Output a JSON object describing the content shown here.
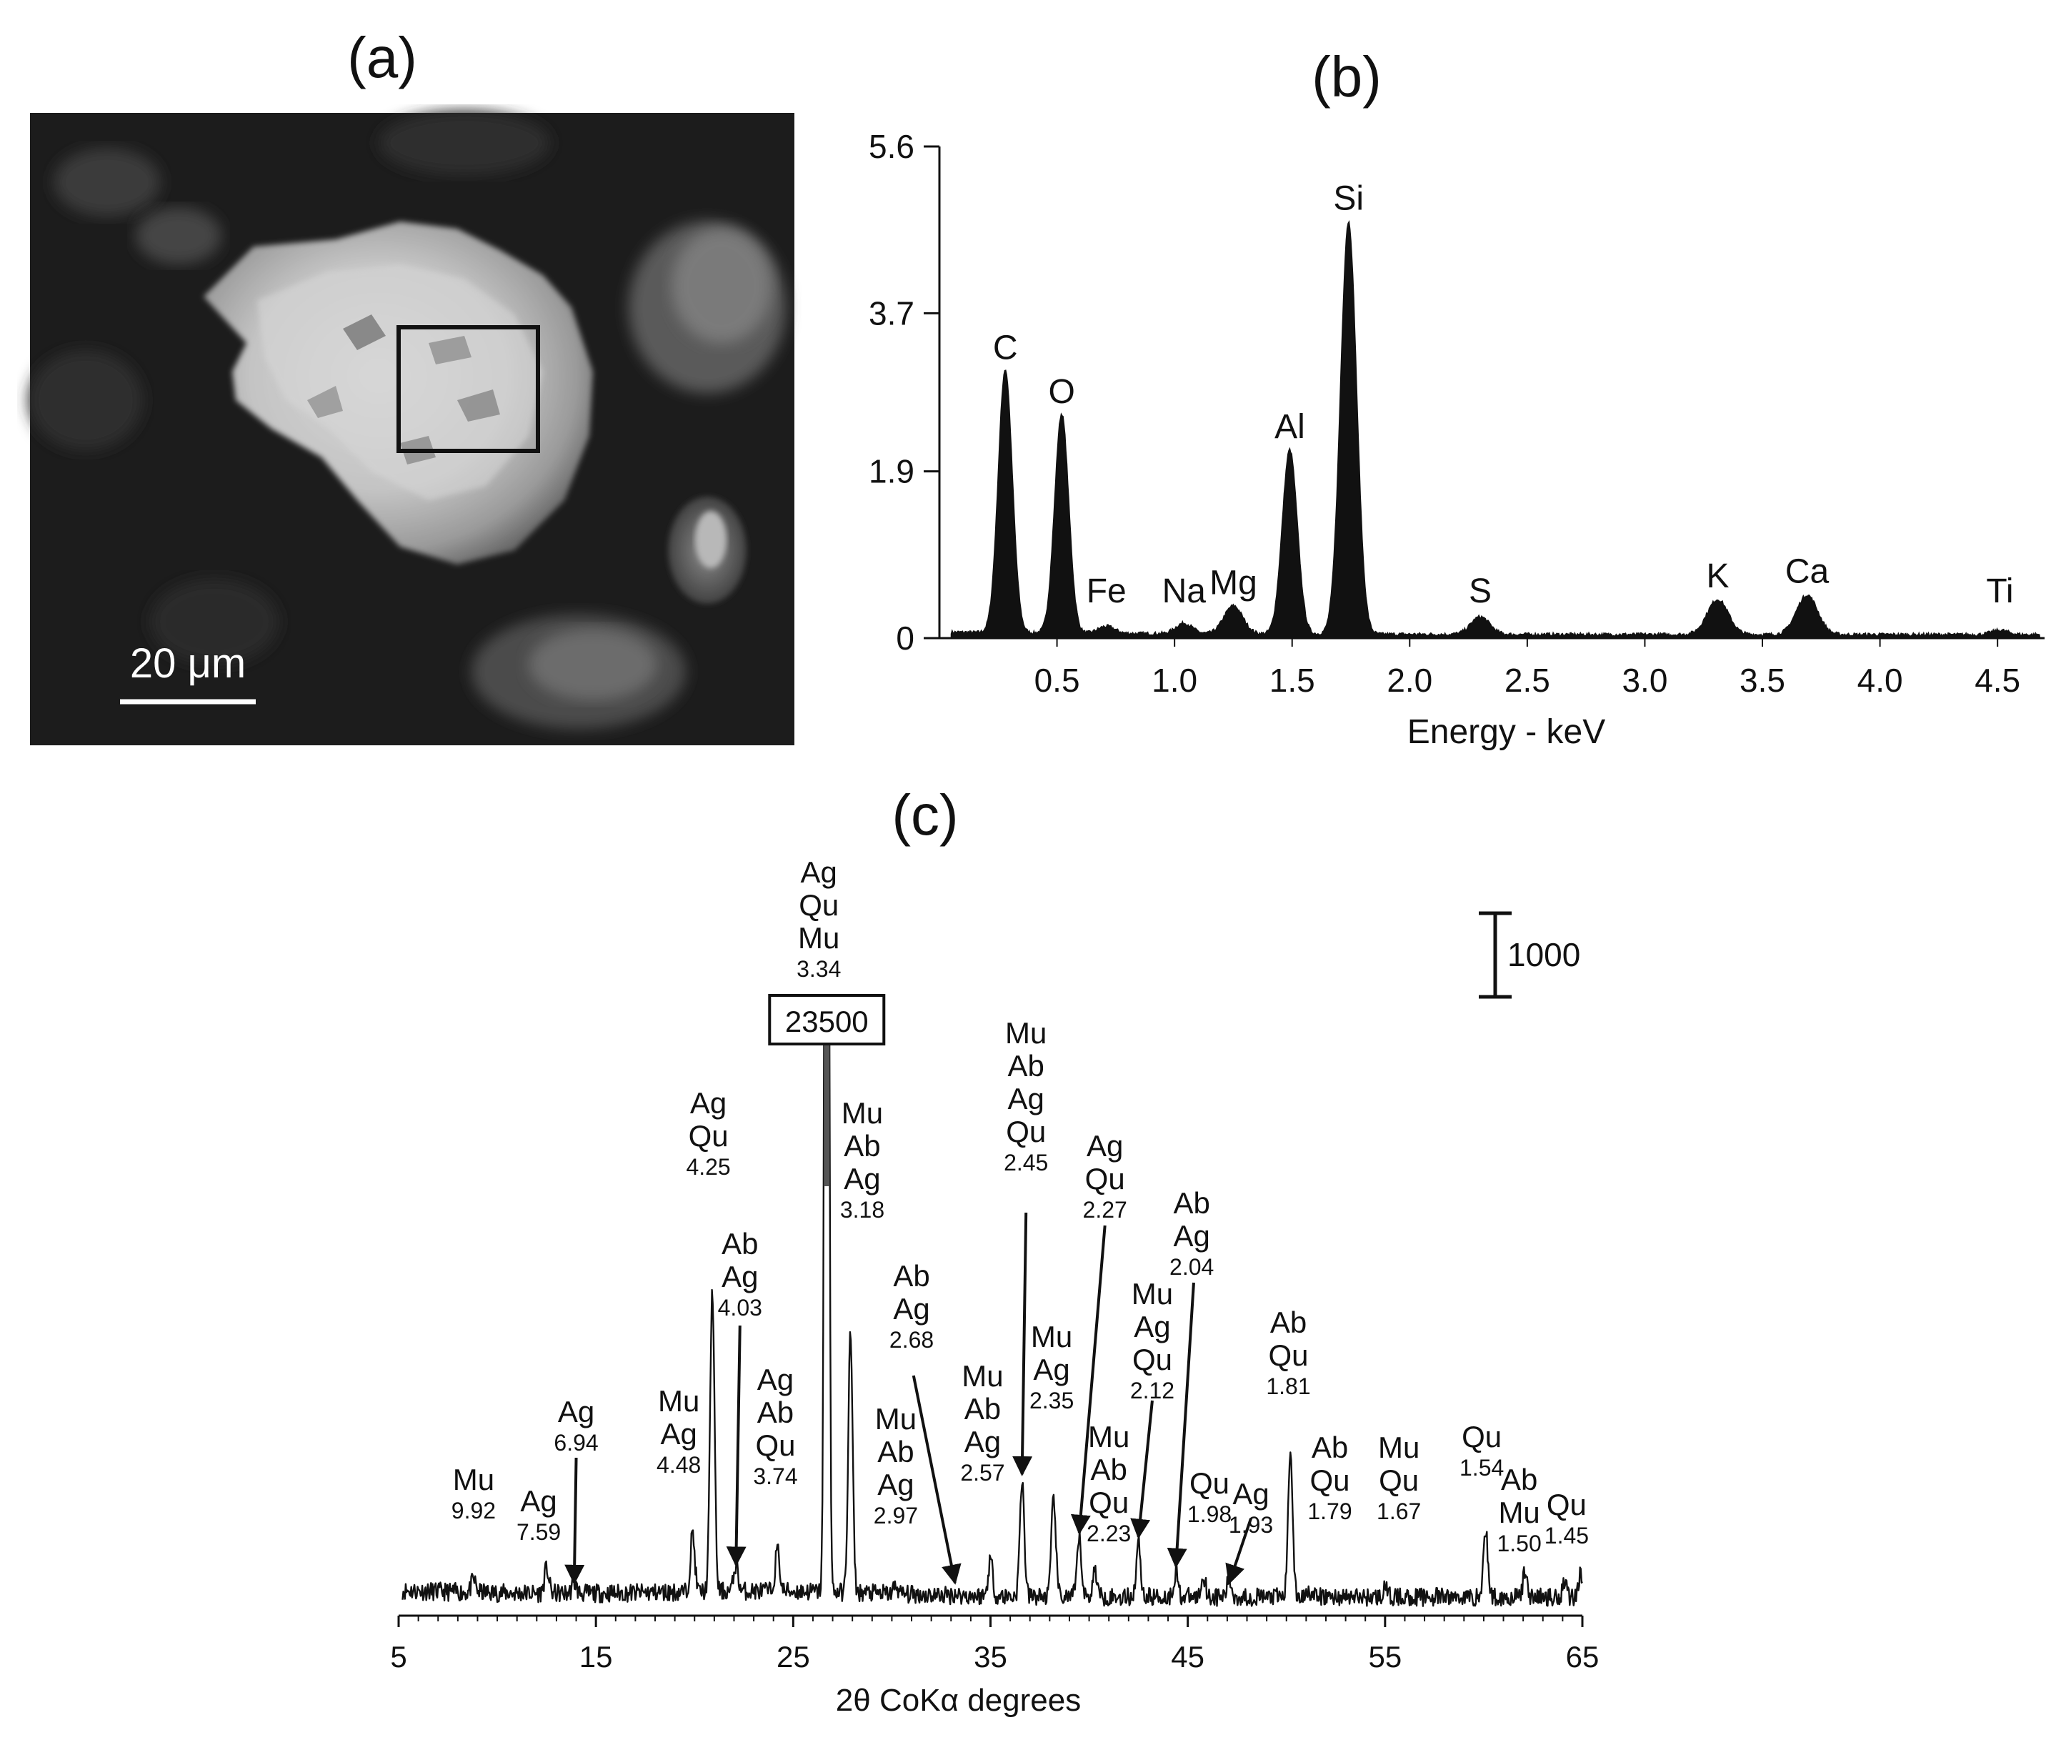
{
  "panels": {
    "a": {
      "letter": "(a)",
      "scale_bar_label": "20 μm"
    },
    "b": {
      "letter": "(b)"
    },
    "c": {
      "letter": "(c)",
      "scale_label": "1000",
      "clipped_peak_value": "23500"
    }
  },
  "colors": {
    "ink": "#111111",
    "background": "#ffffff",
    "sem_background": "#1c1c1c"
  },
  "chart_data": [
    {
      "panel": "b",
      "type": "area",
      "xlabel": "Energy - keV",
      "ylabel": "",
      "xlim": [
        0,
        4.7
      ],
      "ylim": [
        0,
        5.6
      ],
      "x_ticks": [
        0.5,
        1.0,
        1.5,
        2.0,
        2.5,
        3.0,
        3.5,
        4.0,
        4.5
      ],
      "x_tick_labels": [
        "0.5",
        "1.0",
        "1.5",
        "2.0",
        "2.5",
        "3.0",
        "3.5",
        "4.0",
        "4.5"
      ],
      "y_ticks": [
        0,
        1.9,
        3.7,
        5.6
      ],
      "y_tick_labels": [
        "0",
        "1.9",
        "3.7",
        "5.6"
      ],
      "peaks": [
        {
          "label": "C",
          "energy": 0.28,
          "intensity": 3.0
        },
        {
          "label": "O",
          "energy": 0.52,
          "intensity": 2.5
        },
        {
          "label": "Fe",
          "energy": 0.71,
          "intensity": 0.08
        },
        {
          "label": "Na",
          "energy": 1.04,
          "intensity": 0.12
        },
        {
          "label": "Mg",
          "energy": 1.25,
          "intensity": 0.32
        },
        {
          "label": "Al",
          "energy": 1.49,
          "intensity": 2.1
        },
        {
          "label": "Si",
          "energy": 1.74,
          "intensity": 4.7
        },
        {
          "label": "S",
          "energy": 2.3,
          "intensity": 0.2
        },
        {
          "label": "K",
          "energy": 3.31,
          "intensity": 0.4
        },
        {
          "label": "Ca",
          "energy": 3.69,
          "intensity": 0.45
        },
        {
          "label": "Ti",
          "energy": 4.51,
          "intensity": 0.05
        }
      ]
    },
    {
      "panel": "c",
      "type": "line",
      "xlabel": "2θ CoKα degrees",
      "ylabel": "",
      "xlim": [
        5,
        65
      ],
      "x_ticks": [
        5,
        15,
        25,
        35,
        45,
        55,
        65
      ],
      "x_tick_labels": [
        "5",
        "15",
        "25",
        "35",
        "45",
        "55",
        "65"
      ],
      "baseline_counts": 300,
      "y_scale_bar_counts": 1000,
      "peaks": [
        {
          "angle": 8.8,
          "counts": 450,
          "minerals": [
            "Mu"
          ],
          "d": "9.92",
          "arrow": false
        },
        {
          "angle": 12.5,
          "counts": 300,
          "minerals": [
            "Ag"
          ],
          "d": "7.59",
          "arrow": false
        },
        {
          "angle": 13.9,
          "counts": 130,
          "minerals": [
            "Ag"
          ],
          "d": "6.94",
          "arrow": true
        },
        {
          "angle": 19.9,
          "counts": 1000,
          "minerals": [
            "Mu",
            "Ag"
          ],
          "d": "4.48",
          "arrow": false
        },
        {
          "angle": 20.9,
          "counts": 3900,
          "minerals": [
            "Ag",
            "Qu"
          ],
          "d": "4.25",
          "arrow": false
        },
        {
          "angle": 22.1,
          "counts": 620,
          "minerals": [
            "Ab",
            "Ag"
          ],
          "d": "4.03",
          "arrow": true
        },
        {
          "angle": 24.2,
          "counts": 800,
          "minerals": [
            "Ag",
            "Ab",
            "Qu"
          ],
          "d": "3.74",
          "arrow": false
        },
        {
          "angle": 26.7,
          "counts": 23500,
          "minerals": [
            "Ag",
            "Qu",
            "Mu"
          ],
          "d": "3.34",
          "arrow": false,
          "clipped": true
        },
        {
          "angle": 27.9,
          "counts": 3400,
          "minerals": [
            "Mu",
            "Ab",
            "Ag"
          ],
          "d": "3.18",
          "arrow": false
        },
        {
          "angle": 30.2,
          "counts": 400,
          "minerals": [
            "Mu",
            "Ab",
            "Ag"
          ],
          "d": "2.97",
          "arrow": false
        },
        {
          "angle": 33.2,
          "counts": 320,
          "minerals": [
            "Ab",
            "Ag"
          ],
          "d": "2.68",
          "arrow": true
        },
        {
          "angle": 35.0,
          "counts": 750,
          "minerals": [
            "Mu",
            "Ab",
            "Ag"
          ],
          "d": "2.57",
          "arrow": false
        },
        {
          "angle": 36.6,
          "counts": 1700,
          "minerals": [
            "Mu",
            "Ab",
            "Ag",
            "Qu"
          ],
          "d": "2.45",
          "arrow": true
        },
        {
          "angle": 38.2,
          "counts": 1500,
          "minerals": [
            "Mu",
            "Ag"
          ],
          "d": "2.35",
          "arrow": false
        },
        {
          "angle": 39.5,
          "counts": 1000,
          "minerals": [
            "Ag",
            "Qu"
          ],
          "d": "2.27",
          "arrow": true
        },
        {
          "angle": 40.3,
          "counts": 620,
          "minerals": [
            "Mu",
            "Ab",
            "Qu"
          ],
          "d": "2.23",
          "arrow": false
        },
        {
          "angle": 42.5,
          "counts": 950,
          "minerals": [
            "Mu",
            "Ag",
            "Qu"
          ],
          "d": "2.12",
          "arrow": true
        },
        {
          "angle": 44.4,
          "counts": 600,
          "minerals": [
            "Ab",
            "Ag"
          ],
          "d": "2.04",
          "arrow": true
        },
        {
          "angle": 45.8,
          "counts": 550,
          "minerals": [
            "Qu"
          ],
          "d": "1.98",
          "arrow": false
        },
        {
          "angle": 47.1,
          "counts": 200,
          "minerals": [
            "Ag"
          ],
          "d": "1.93",
          "arrow": true
        },
        {
          "angle": 50.2,
          "counts": 2100,
          "minerals": [
            "Ab",
            "Qu"
          ],
          "d": "1.81",
          "arrow": false
        },
        {
          "angle": 51.1,
          "counts": 400,
          "minerals": [
            "Ab",
            "Qu"
          ],
          "d": "1.79",
          "arrow": false
        },
        {
          "angle": 55.0,
          "counts": 400,
          "minerals": [
            "Mu",
            "Qu"
          ],
          "d": "1.67",
          "arrow": false
        },
        {
          "angle": 60.1,
          "counts": 1100,
          "minerals": [
            "Qu"
          ],
          "d": "1.54",
          "arrow": false
        },
        {
          "angle": 62.1,
          "counts": 300,
          "minerals": [
            "Ab",
            "Mu"
          ],
          "d": "1.50",
          "arrow": false
        },
        {
          "angle": 64.1,
          "counts": 200,
          "minerals": [
            "Qu"
          ],
          "d": "1.45",
          "arrow": false
        },
        {
          "angle": 64.9,
          "counts": 280,
          "minerals": [],
          "d": "",
          "arrow": false
        }
      ]
    }
  ]
}
